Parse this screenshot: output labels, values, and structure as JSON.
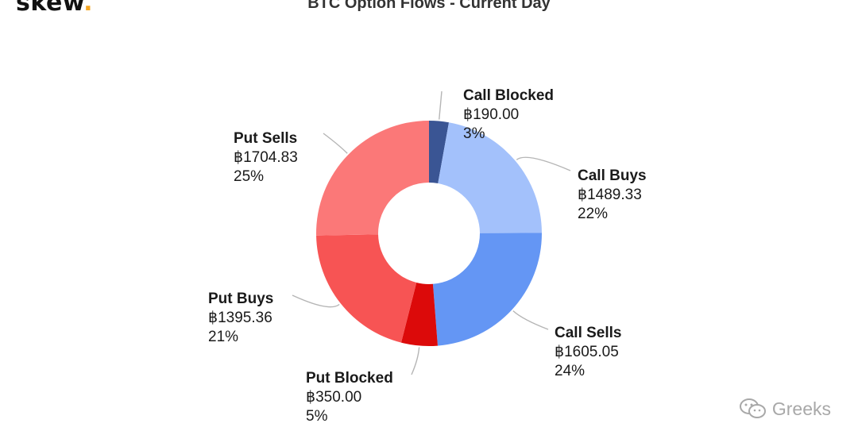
{
  "brand": {
    "name": "skew",
    "dot": "."
  },
  "chart_data": {
    "type": "pie",
    "style": "donut",
    "title": "BTC Option Flows - Current Day",
    "currency_symbol": "฿",
    "series": [
      {
        "name": "Call Blocked",
        "value": 190.0,
        "value_label": "฿190.00",
        "percent_label": "3%",
        "color": "#3a5594"
      },
      {
        "name": "Call Buys",
        "value": 1489.33,
        "value_label": "฿1489.33",
        "percent_label": "22%",
        "color": "#a3c1fb"
      },
      {
        "name": "Call Sells",
        "value": 1605.05,
        "value_label": "฿1605.05",
        "percent_label": "24%",
        "color": "#6496f4"
      },
      {
        "name": "Put Blocked",
        "value": 350.0,
        "value_label": "฿350.00",
        "percent_label": "5%",
        "color": "#dc0a0a"
      },
      {
        "name": "Put Buys",
        "value": 1395.36,
        "value_label": "฿1395.36",
        "percent_label": "21%",
        "color": "#f75454"
      },
      {
        "name": "Put Sells",
        "value": 1704.83,
        "value_label": "฿1704.83",
        "percent_label": "25%",
        "color": "#fb7878"
      }
    ]
  },
  "watermark": {
    "text": "Greeks",
    "icon": "wechat-icon"
  }
}
